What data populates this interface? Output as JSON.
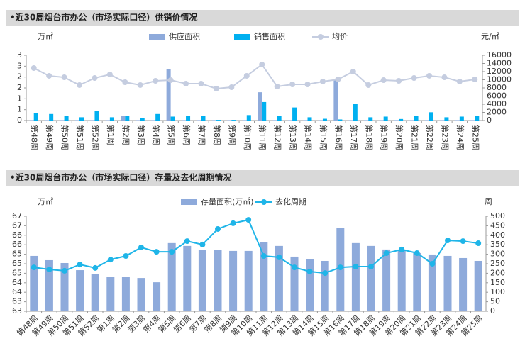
{
  "chart_data": [
    {
      "type": "combo",
      "title": "•近30周烟台市办公（市场实际口径）供销价情况",
      "y_label": "万㎡",
      "y2_label": "元/㎡",
      "categories": [
        "第48周",
        "第49周",
        "第50周",
        "第51周",
        "第52周",
        "第1周",
        "第2周",
        "第3周",
        "第4周",
        "第5周",
        "第6周",
        "第7周",
        "第8周",
        "第9周",
        "第10周",
        "第11周",
        "第12周",
        "第13周",
        "第14周",
        "第15周",
        "第16周",
        "第17周",
        "第18周",
        "第19周",
        "第20周",
        "第21周",
        "第22周",
        "第23周",
        "第24周",
        "第25周"
      ],
      "ylim": [
        0,
        3
      ],
      "yticks": [
        0,
        {
          "value": 0.5,
          "label": "1"
        },
        1,
        {
          "value": 1.5,
          "label": "2"
        },
        2,
        {
          "value": 2.5,
          "label": "3"
        },
        3
      ],
      "y2lim": [
        0,
        16000
      ],
      "y2ticks": [
        0,
        2000,
        4000,
        6000,
        8000,
        10000,
        12000,
        14000,
        16000
      ],
      "grid": false,
      "series": [
        {
          "name": "供应面积",
          "type": "bar",
          "color": "#8eaadb",
          "values": [
            0.02,
            0.02,
            0.02,
            0.02,
            0.02,
            0.02,
            0.2,
            0.02,
            0.02,
            2.35,
            0.02,
            0.02,
            0.02,
            0.02,
            0.02,
            1.3,
            0.02,
            0.02,
            0.02,
            0.02,
            1.9,
            0.02,
            0.02,
            0.02,
            0.02,
            0.02,
            0.02,
            0.02,
            0.02,
            0.02
          ]
        },
        {
          "name": "销售面积",
          "type": "bar",
          "color": "#00b0f0",
          "values": [
            0.35,
            0.3,
            0.2,
            0.15,
            0.45,
            0.15,
            0.2,
            0.12,
            0.3,
            0.18,
            0.2,
            0.2,
            0.03,
            0.03,
            0.25,
            0.85,
            0.2,
            0.6,
            0.15,
            0.08,
            0.05,
            0.78,
            0.15,
            0.18,
            0.07,
            0.2,
            0.38,
            0.15,
            0.18,
            0.2
          ]
        },
        {
          "name": "均价",
          "type": "line",
          "axis": "y2",
          "color": "#c5cde0",
          "values": [
            12870,
            10960,
            10600,
            8700,
            10430,
            11300,
            9390,
            8700,
            9740,
            9910,
            9040,
            9040,
            7830,
            8170,
            10960,
            13740,
            8350,
            8870,
            8870,
            9570,
            10090,
            12000,
            8700,
            9910,
            9740,
            10430,
            10960,
            10600,
            9570,
            10090
          ]
        }
      ]
    },
    {
      "type": "combo",
      "title": "•近30周烟台市办公（市场实际口径）存量及去化周期情况",
      "y_label": "万㎡",
      "y2_label": "周",
      "categories": [
        "第48周",
        "第49周",
        "第50周",
        "第51周",
        "第52周",
        "第1周",
        "第2周",
        "第3周",
        "第4周",
        "第5周",
        "第6周",
        "第7周",
        "第8周",
        "第9周",
        "第10周",
        "第11周",
        "第12周",
        "第13周",
        "第14周",
        "第15周",
        "第16周",
        "第17周",
        "第18周",
        "第19周",
        "第20周",
        "第21周",
        "第22周",
        "第23周",
        "第24周",
        "第25周"
      ],
      "ylim": [
        63,
        67
      ],
      "yticks": [
        63,
        {
          "value": 63.4,
          "label": "63"
        },
        {
          "value": 63.8,
          "label": "64"
        },
        {
          "value": 64.2,
          "label": "64"
        },
        {
          "value": 64.6,
          "label": "65"
        },
        65,
        {
          "value": 65.4,
          "label": "65"
        },
        {
          "value": 65.8,
          "label": "66"
        },
        {
          "value": 66.2,
          "label": "66"
        },
        {
          "value": 66.6,
          "label": "67"
        },
        67
      ],
      "y2lim": [
        0,
        500
      ],
      "y2ticks": [
        0,
        50,
        100,
        150,
        200,
        250,
        300,
        350,
        400,
        450,
        500
      ],
      "grid": false,
      "series": [
        {
          "name": "存量面积(万㎡)",
          "type": "bar",
          "color": "#8eaadb",
          "values": [
            65.33,
            65.15,
            65.03,
            64.73,
            64.58,
            64.46,
            64.46,
            64.4,
            64.22,
            65.87,
            65.75,
            65.57,
            65.57,
            65.54,
            65.54,
            65.9,
            65.75,
            65.3,
            65.18,
            65.12,
            66.52,
            65.87,
            65.75,
            65.6,
            65.6,
            65.45,
            65.39,
            65.33,
            65.24,
            65.12
          ]
        },
        {
          "name": "去化周期",
          "type": "line",
          "axis": "y2",
          "color": "#1fb5e8",
          "values": [
            231,
            220,
            213,
            246,
            228,
            272,
            291,
            336,
            313,
            313,
            369,
            351,
            433,
            463,
            481,
            291,
            284,
            231,
            209,
            201,
            231,
            235,
            235,
            306,
            325,
            306,
            250,
            373,
            369,
            358
          ]
        }
      ]
    }
  ]
}
